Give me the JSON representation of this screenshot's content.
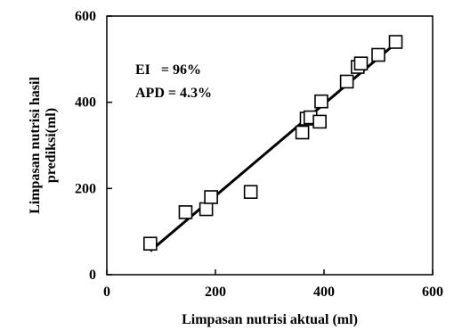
{
  "chart_data": {
    "type": "scatter",
    "xlabel": "Limpasan nutrisi aktual (ml)",
    "ylabel_line1": "Limpasan nutrisi hasil",
    "ylabel_line2": "prediksi(ml)",
    "xlim": [
      0,
      600
    ],
    "ylim": [
      0,
      600
    ],
    "x_ticks": [
      0,
      200,
      400,
      600
    ],
    "y_ticks": [
      0,
      200,
      400,
      600
    ],
    "grid": false,
    "annotations": [
      "EI   = 96%",
      "APD = 4.3%"
    ],
    "series": [
      {
        "marker": "open-square",
        "points": [
          [
            80,
            72
          ],
          [
            145,
            145
          ],
          [
            183,
            152
          ],
          [
            192,
            180
          ],
          [
            265,
            192
          ],
          [
            360,
            330
          ],
          [
            368,
            362
          ],
          [
            375,
            365
          ],
          [
            392,
            355
          ],
          [
            395,
            402
          ],
          [
            442,
            448
          ],
          [
            462,
            482
          ],
          [
            468,
            490
          ],
          [
            500,
            510
          ],
          [
            532,
            540
          ]
        ]
      }
    ],
    "fit_line": {
      "x": [
        80,
        535
      ],
      "y": [
        55,
        540
      ]
    }
  }
}
